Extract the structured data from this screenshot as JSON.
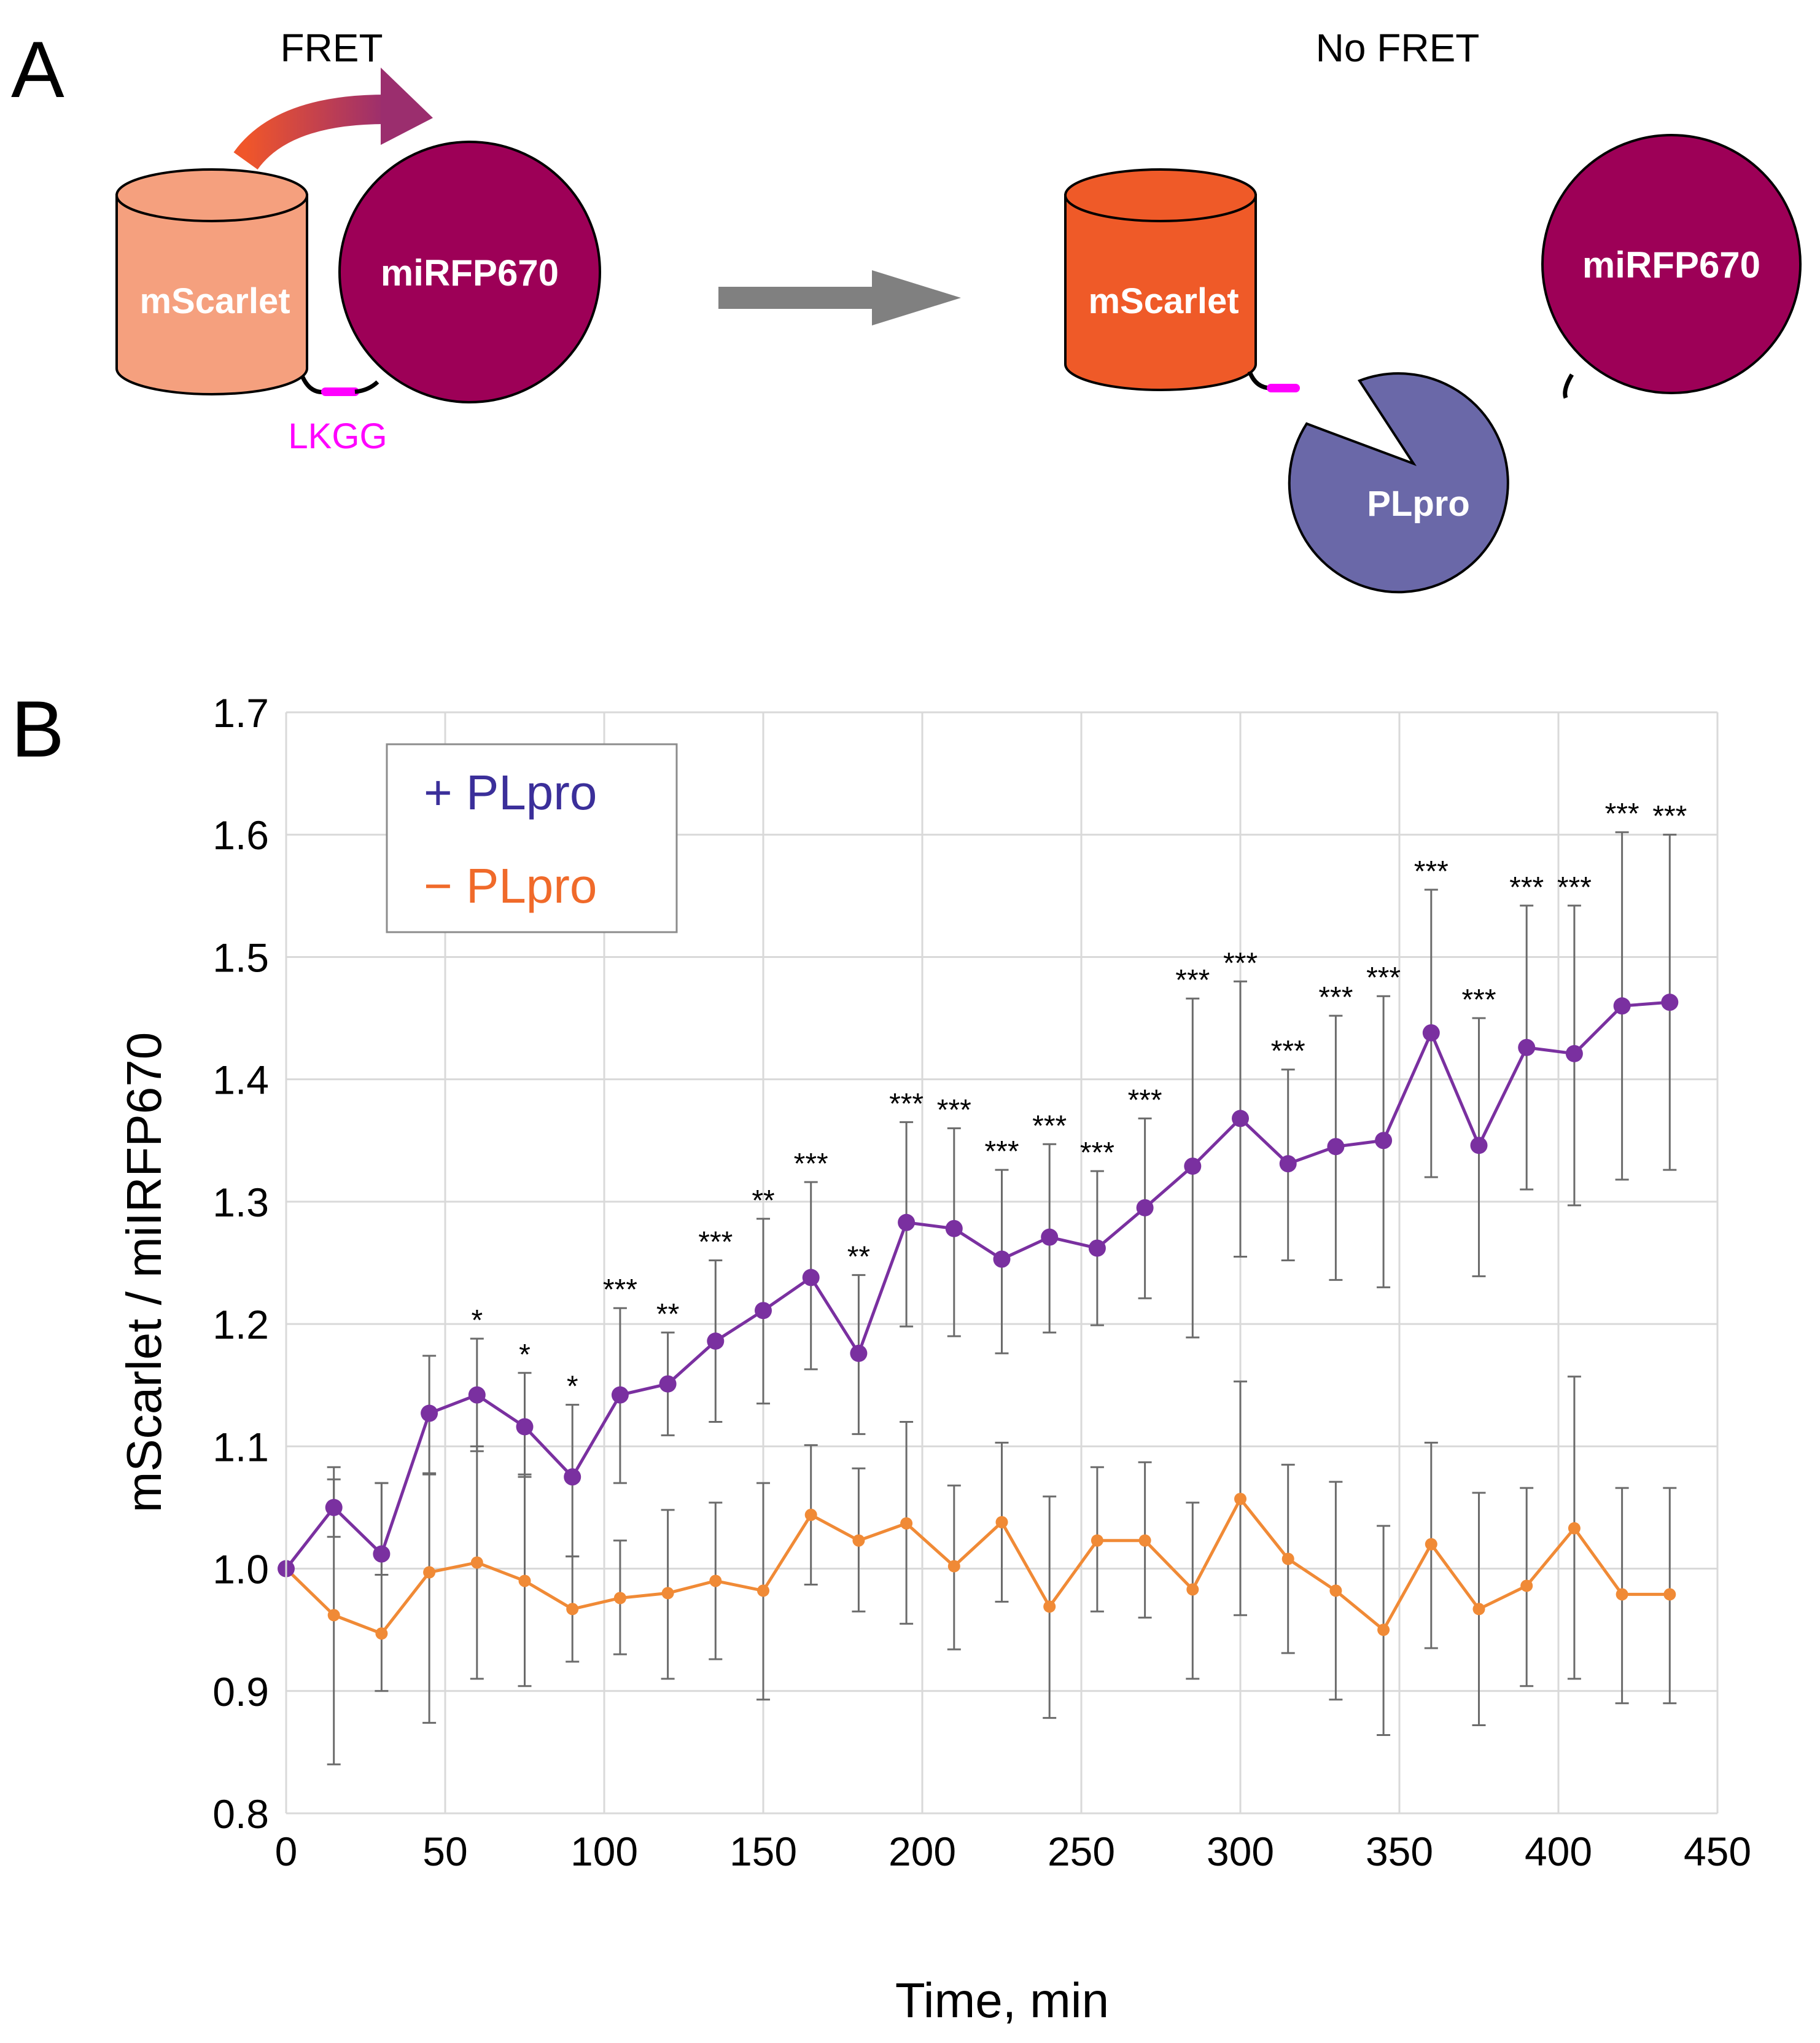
{
  "panel_a": {
    "label": "A",
    "fret_label": "FRET",
    "no_fret_label": "No FRET",
    "linker_label": "LKGG",
    "donor_label": "mScarlet",
    "acceptor_label": "miRFP670",
    "donor_cleaved_label": "mScarlet",
    "acceptor_cleaved_label": "miRFP670",
    "protease_label": "PLpro",
    "colors": {
      "donor_intact": "#F5A07E",
      "donor_cleaved": "#EF5A28",
      "acceptor": "#9D0057",
      "protease": "#6A68A8",
      "linker": "#FF00FF",
      "arrow": "#808080"
    }
  },
  "panel_b": {
    "label": "B",
    "legend": {
      "plus": "+ PLpro",
      "minus": "− PLpro"
    }
  },
  "chart_data": {
    "type": "line",
    "title": "",
    "xlabel": "Time, min",
    "ylabel": "mScarlet / miIRFP670",
    "xlim": [
      0,
      450
    ],
    "ylim": [
      0.8,
      1.7
    ],
    "xticks": [
      0,
      50,
      100,
      150,
      200,
      250,
      300,
      350,
      400,
      450
    ],
    "yticks": [
      "0.8",
      "0.9",
      "1.0",
      "1.1",
      "1.2",
      "1.3",
      "1.4",
      "1.5",
      "1.6",
      "1.7"
    ],
    "grid": true,
    "legend_position": "top-left",
    "x": [
      0,
      15,
      30,
      45,
      60,
      75,
      90,
      105,
      120,
      135,
      150,
      165,
      180,
      195,
      210,
      225,
      240,
      255,
      270,
      285,
      300,
      315,
      330,
      345,
      360,
      375,
      390,
      405,
      420,
      435
    ],
    "series": [
      {
        "name": "+ PLpro",
        "color": "#7A30A0",
        "values": [
          1.0,
          1.05,
          1.012,
          1.127,
          1.142,
          1.116,
          1.075,
          1.142,
          1.151,
          1.186,
          1.211,
          1.238,
          1.176,
          1.283,
          1.278,
          1.253,
          1.271,
          1.262,
          1.295,
          1.329,
          1.368,
          1.331,
          1.345,
          1.35,
          1.438,
          1.346,
          1.426,
          1.421,
          1.46,
          1.463
        ],
        "err_low": [
          1.0,
          1.026,
          0.995,
          1.077,
          1.096,
          1.075,
          1.01,
          1.07,
          1.109,
          1.12,
          1.135,
          1.163,
          1.11,
          1.198,
          1.19,
          1.176,
          1.193,
          1.199,
          1.221,
          1.189,
          1.255,
          1.252,
          1.236,
          1.23,
          1.32,
          1.239,
          1.31,
          1.297,
          1.318,
          1.326
        ],
        "err_high": [
          1.0,
          1.083,
          1.07,
          1.174,
          1.188,
          1.16,
          1.134,
          1.213,
          1.193,
          1.252,
          1.286,
          1.316,
          1.24,
          1.365,
          1.36,
          1.326,
          1.347,
          1.325,
          1.368,
          1.466,
          1.48,
          1.408,
          1.452,
          1.468,
          1.555,
          1.45,
          1.542,
          1.542,
          1.602,
          1.6
        ],
        "significance": [
          "",
          "",
          "",
          "",
          "*",
          "*",
          "*",
          "***",
          "**",
          "***",
          "**",
          "***",
          "**",
          "***",
          "***",
          "***",
          "***",
          "***",
          "***",
          "***",
          "***",
          "***",
          "***",
          "***",
          "***",
          "***",
          "***",
          "***",
          "***",
          "***"
        ]
      },
      {
        "name": "− PLpro",
        "color": "#F08A36",
        "values": [
          1.0,
          0.962,
          0.947,
          0.997,
          1.005,
          0.99,
          0.967,
          0.976,
          0.98,
          0.99,
          0.982,
          1.044,
          1.023,
          1.037,
          1.002,
          1.038,
          0.969,
          1.023,
          1.023,
          0.983,
          1.057,
          1.008,
          0.982,
          0.95,
          1.02,
          0.967,
          0.986,
          1.033,
          0.979,
          0.979
        ],
        "err_low": [
          1.0,
          0.84,
          0.9,
          0.874,
          0.91,
          0.904,
          0.924,
          0.93,
          0.91,
          0.926,
          0.893,
          0.987,
          0.965,
          0.955,
          0.934,
          0.973,
          0.878,
          0.965,
          0.96,
          0.91,
          0.962,
          0.931,
          0.893,
          0.864,
          0.935,
          0.872,
          0.904,
          0.91,
          0.89,
          0.89
        ],
        "err_high": [
          1.0,
          1.073,
          1.07,
          1.078,
          1.1,
          1.077,
          1.01,
          1.023,
          1.048,
          1.054,
          1.07,
          1.101,
          1.082,
          1.12,
          1.068,
          1.103,
          1.059,
          1.083,
          1.087,
          1.054,
          1.153,
          1.085,
          1.071,
          1.035,
          1.103,
          1.062,
          1.066,
          1.157,
          1.066,
          1.066
        ]
      }
    ]
  }
}
